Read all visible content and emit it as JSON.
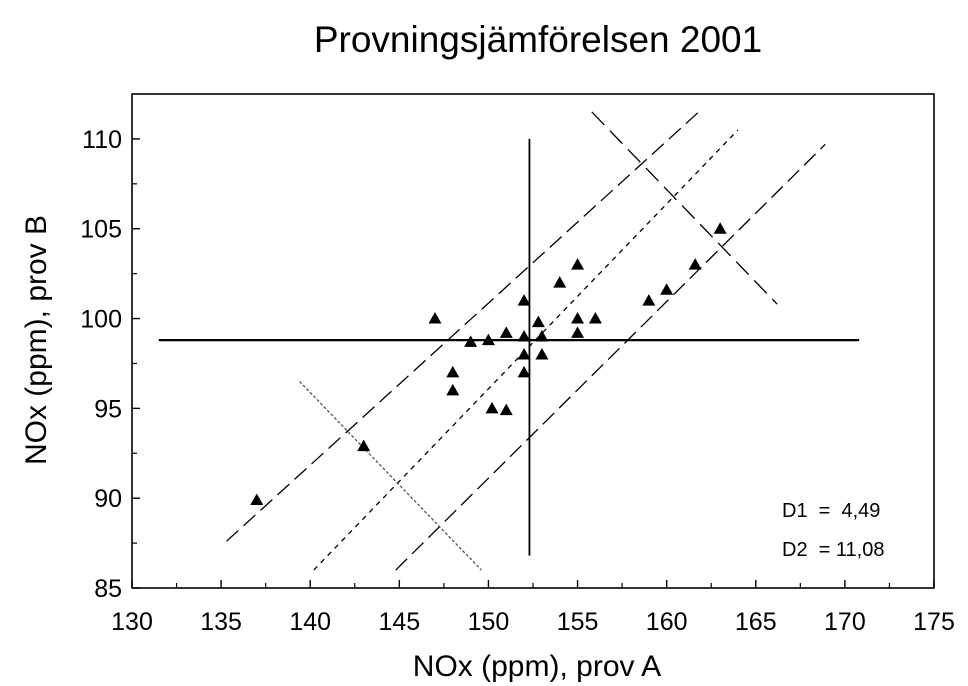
{
  "chart_data": {
    "type": "scatter",
    "title": "Provningsjämförelsen 2001",
    "xlabel": "NOx (ppm), prov A",
    "ylabel": "NOx (ppm), prov B",
    "xlim": [
      130,
      175
    ],
    "ylim": [
      85,
      112.5
    ],
    "xticks": [
      130,
      135,
      140,
      145,
      150,
      155,
      160,
      165,
      170,
      175
    ],
    "yticks": [
      85,
      90,
      95,
      100,
      105,
      110
    ],
    "xtick_labels": [
      "130",
      "135",
      "140",
      "145",
      "150",
      "155",
      "160",
      "165",
      "170",
      "175"
    ],
    "ytick_labels": [
      "85",
      "90",
      "95",
      "100",
      "105",
      "110"
    ],
    "grid": false,
    "marker": "triangle",
    "series": [
      {
        "points": [
          [
            137,
            89.9
          ],
          [
            143,
            92.9
          ],
          [
            147,
            100
          ],
          [
            148,
            97
          ],
          [
            148,
            96
          ],
          [
            149,
            98.7
          ],
          [
            150,
            98.8
          ],
          [
            150.2,
            95
          ],
          [
            151,
            99.2
          ],
          [
            151,
            94.9
          ],
          [
            152,
            101
          ],
          [
            152,
            99
          ],
          [
            152,
            98
          ],
          [
            152,
            97
          ],
          [
            152.8,
            99.8
          ],
          [
            153,
            99
          ],
          [
            153,
            98
          ],
          [
            154,
            102
          ],
          [
            155,
            103
          ],
          [
            155,
            100
          ],
          [
            155,
            99.2
          ],
          [
            156,
            100
          ],
          [
            159,
            101
          ],
          [
            160,
            101.6
          ],
          [
            161.6,
            103
          ],
          [
            163,
            105
          ]
        ]
      }
    ],
    "reference_lines": {
      "median_x": 152.3,
      "median_y": 98.8,
      "vertical_line_y_range": [
        86.8,
        110
      ],
      "horizontal_line_x_range": [
        131.5,
        170.8
      ],
      "diagonal_center": [
        [
          140.2,
          86
        ],
        [
          164,
          110.5
        ]
      ],
      "diagonal_upper": [
        [
          135.3,
          87.6
        ],
        [
          161.8,
          111.5
        ]
      ],
      "diagonal_lower": [
        [
          144.8,
          86
        ],
        [
          168.9,
          109.7
        ]
      ],
      "perpendicular_upper": [
        [
          155.8,
          111.5
        ],
        [
          166.2,
          100.8
        ]
      ],
      "perpendicular_lower": [
        [
          139.4,
          96.5
        ],
        [
          149.6,
          86
        ]
      ]
    },
    "annotations": [
      "D1  =  4,49",
      "D2  = 11,08"
    ]
  }
}
